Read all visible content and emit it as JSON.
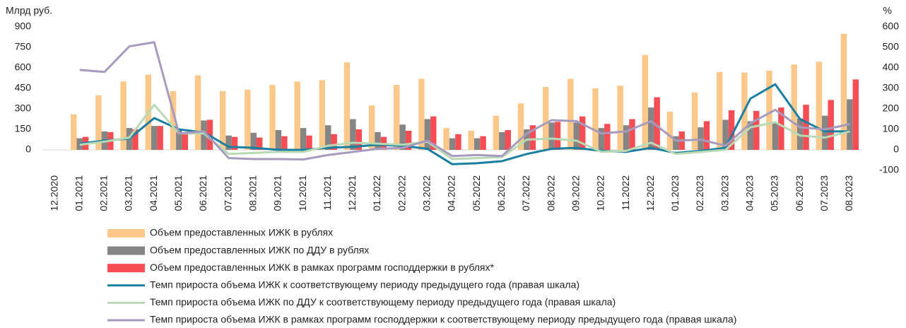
{
  "chart_data": {
    "type": "bar",
    "y_label": "Млрд руб.",
    "y2_label": "%",
    "categories": [
      "12.2020",
      "01.2021",
      "02.2021",
      "03.2021",
      "04.2021",
      "05.2021",
      "06.2021",
      "07.2021",
      "08.2021",
      "09.2021",
      "10.2021",
      "11.2021",
      "12.2021",
      "01.2022",
      "02.2022",
      "03.2022",
      "04.2022",
      "05.2022",
      "06.2022",
      "07.2022",
      "08.2022",
      "09.2022",
      "10.2022",
      "11.2022",
      "12.2022",
      "01.2023",
      "02.2023",
      "03.2023",
      "04.2023",
      "05.2023",
      "06.2023",
      "07.2023",
      "08.2023"
    ],
    "ylim": [
      -150,
      900
    ],
    "yticks": [
      0,
      150,
      300,
      450,
      600,
      750,
      900
    ],
    "y2lim": [
      -100,
      600
    ],
    "y2ticks": [
      -100,
      0,
      100,
      200,
      300,
      400,
      500,
      600
    ],
    "series": [
      {
        "name": "Объем предоставленных ИЖК в рублях",
        "type": "bar",
        "color": "#fbc88a",
        "values": [
          null,
          260,
          400,
          500,
          550,
          430,
          545,
          430,
          440,
          475,
          500,
          510,
          640,
          325,
          475,
          520,
          160,
          140,
          250,
          340,
          460,
          520,
          450,
          470,
          695,
          280,
          420,
          570,
          565,
          580,
          625,
          645,
          850
        ]
      },
      {
        "name": "Объем предоставленных ИЖК по ДДУ в рублях",
        "type": "bar",
        "color": "#858585",
        "values": [
          null,
          85,
          135,
          160,
          175,
          150,
          215,
          105,
          125,
          145,
          160,
          180,
          225,
          130,
          185,
          225,
          85,
          85,
          130,
          150,
          200,
          200,
          160,
          180,
          310,
          100,
          165,
          220,
          210,
          200,
          230,
          250,
          370
        ]
      },
      {
        "name": "Объем предоставленных ИЖК в рамках программ господдержки в рублях*",
        "type": "bar",
        "color": "#f64d55",
        "values": [
          null,
          95,
          130,
          150,
          175,
          120,
          220,
          95,
          90,
          100,
          105,
          115,
          150,
          95,
          140,
          245,
          115,
          100,
          145,
          180,
          205,
          245,
          190,
          225,
          385,
          135,
          210,
          290,
          285,
          310,
          330,
          365,
          515
        ]
      },
      {
        "name": "Темп прироста объема ИЖК к соответствующему периоду предыдущего года (правая шкала)",
        "type": "line",
        "axis": "y2",
        "color": "#1a7fa0",
        "values": [
          null,
          30,
          45,
          55,
          155,
          100,
          85,
          15,
          10,
          0,
          0,
          10,
          15,
          25,
          20,
          5,
          -70,
          -65,
          -55,
          -20,
          5,
          10,
          -5,
          -10,
          10,
          -15,
          -5,
          10,
          250,
          320,
          150,
          90,
          90
        ]
      },
      {
        "name": "Темп прироста объема ИЖК по ДДУ к соответствующему периоду предыдущего года (правая шкала)",
        "type": "line",
        "axis": "y2",
        "color": "#b9d9b4",
        "values": [
          null,
          25,
          40,
          60,
          220,
          80,
          80,
          -20,
          -15,
          -10,
          -10,
          20,
          35,
          30,
          25,
          40,
          -45,
          -40,
          -35,
          50,
          55,
          45,
          -10,
          -5,
          35,
          -20,
          -10,
          0,
          110,
          135,
          70,
          60,
          90
        ]
      },
      {
        "name": "Темп прироста объема ИЖК в рамках программ господдержки к соответствующему периоду предыдущего года (правая шкала)",
        "type": "line",
        "axis": "y2",
        "color": "#a69bbf",
        "values": [
          null,
          390,
          380,
          505,
          525,
          80,
          90,
          -40,
          -45,
          -45,
          -47,
          -25,
          -10,
          5,
          10,
          45,
          -30,
          -25,
          -30,
          80,
          145,
          140,
          80,
          90,
          140,
          45,
          50,
          20,
          130,
          195,
          110,
          100,
          125
        ]
      }
    ]
  }
}
